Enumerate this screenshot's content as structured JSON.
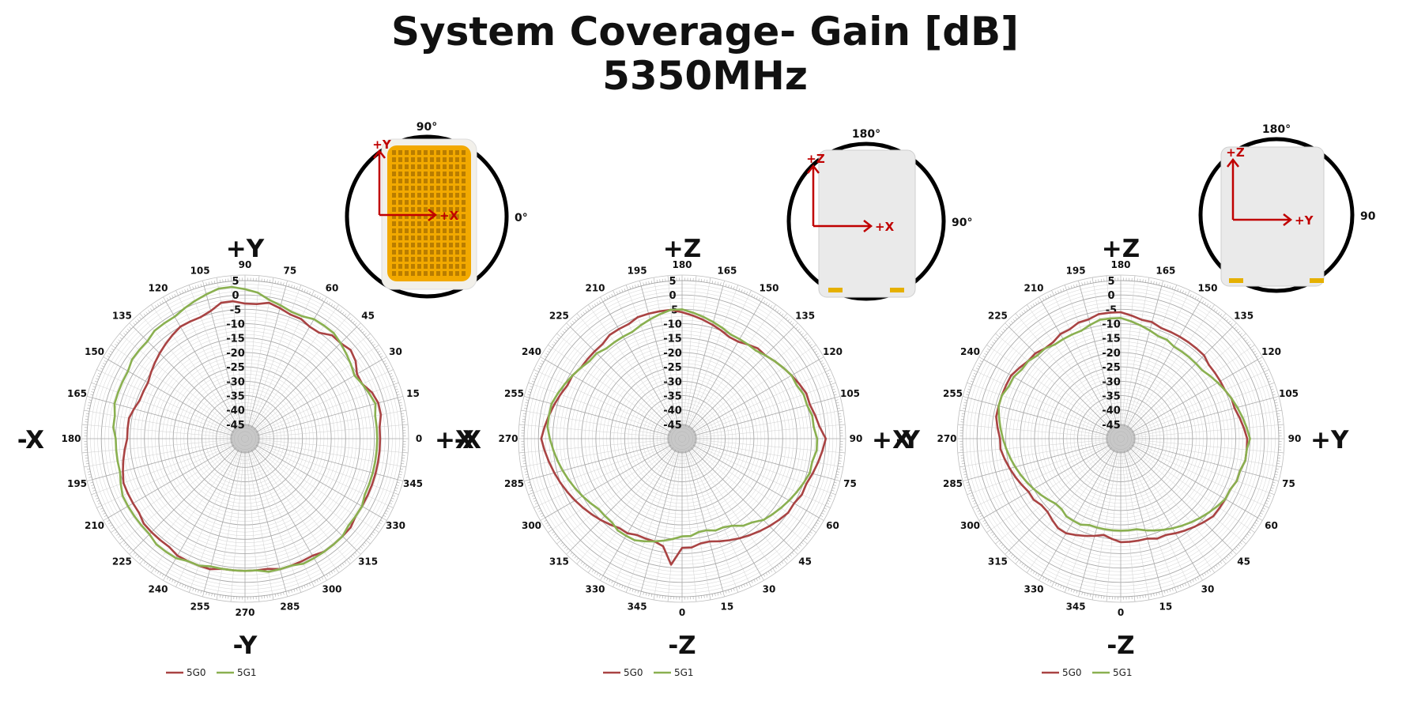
{
  "title": {
    "line1": "System Coverage- Gain [dB]",
    "line2": "5350MHz"
  },
  "colors": {
    "5G0": "#a94343",
    "5G1": "#8ab050",
    "grid": "#b9b9b9"
  },
  "chart_data": [
    {
      "type": "polar-line",
      "radial_ticks": [
        "5",
        "0",
        "-5",
        "-10",
        "-15",
        "-20",
        "-25",
        "-30",
        "-35",
        "-40",
        "-45"
      ],
      "rlim": [
        -50,
        5
      ],
      "angle_labels": [
        "0",
        "15",
        "30",
        "45",
        "60",
        "75",
        "90",
        "105",
        "120",
        "135",
        "150",
        "165",
        "180",
        "195",
        "210",
        "225",
        "240",
        "255",
        "270",
        "285",
        "300",
        "315",
        "330",
        "345"
      ],
      "axis_labels": {
        "top": "+Y",
        "bottom": "-Y",
        "left": "-X",
        "right": "+X"
      },
      "legend": [
        "5G0",
        "5G1"
      ],
      "inset": {
        "top": "90°",
        "right": "0°",
        "arrow_up": "+Y",
        "arrow_right": "+X"
      },
      "series": [
        {
          "name": "5G0",
          "values": [
            -3,
            -3,
            -2,
            -2,
            -3,
            -5,
            -5,
            -3,
            -2,
            -3,
            -3,
            -5,
            -5,
            -4,
            -4,
            -3,
            -2,
            -3,
            -3,
            -2,
            -2,
            -4,
            -5,
            -5,
            -5,
            -6,
            -7,
            -8,
            -9,
            -10,
            -11,
            -11,
            -11,
            -10,
            -9,
            -9,
            -9,
            -8,
            -7,
            -6,
            -5,
            -5,
            -5,
            -5,
            -4,
            -4,
            -4,
            -4,
            -3,
            -3,
            -3,
            -3,
            -4,
            -4,
            -4,
            -4,
            -4,
            -3,
            -3,
            -3,
            -3,
            -2,
            -2,
            -2,
            -2,
            -3,
            -3,
            -3,
            -3,
            -3,
            -3,
            -3
          ]
        },
        {
          "name": "5G1",
          "values": [
            -4,
            -4,
            -4,
            -3,
            -4,
            -5,
            -6,
            -5,
            -4,
            -3,
            -2,
            -2,
            -2,
            -3,
            -3,
            -2,
            -1,
            1,
            2,
            3,
            3,
            2,
            1,
            0,
            -1,
            -1,
            -1,
            -2,
            -2,
            -2,
            -3,
            -3,
            -3,
            -3,
            -4,
            -4,
            -5,
            -5,
            -5,
            -5,
            -4,
            -3,
            -3,
            -3,
            -3,
            -3,
            -2,
            -2,
            -2,
            -3,
            -3,
            -4,
            -4,
            -4,
            -4,
            -4,
            -3,
            -3,
            -3,
            -2,
            -2,
            -2,
            -2,
            -2,
            -3,
            -3,
            -3,
            -4,
            -4,
            -4,
            -4,
            -4
          ]
        }
      ]
    },
    {
      "type": "polar-line",
      "radial_ticks": [
        "5",
        "0",
        "-5",
        "-10",
        "-15",
        "-20",
        "-25",
        "-30",
        "-35",
        "-40",
        "-45"
      ],
      "rlim": [
        -50,
        5
      ],
      "angle_labels": [
        "0",
        "15",
        "30",
        "45",
        "60",
        "75",
        "90",
        "105",
        "120",
        "135",
        "150",
        "165",
        "180",
        "195",
        "210",
        "225",
        "240",
        "255",
        "270",
        "285",
        "300",
        "315",
        "330",
        "345"
      ],
      "axis_labels": {
        "top": "+Z",
        "bottom": "-Z",
        "left": "-X",
        "right": "+X"
      },
      "legend": [
        "5G0",
        "5G1"
      ],
      "inset": {
        "top": "180°",
        "right": "90°",
        "arrow_up": "+Z",
        "arrow_right": "+X"
      },
      "series": [
        {
          "name": "5G0",
          "values": [
            -12,
            -12,
            -13,
            -13,
            -12,
            -11,
            -10,
            -9,
            -8,
            -7,
            -6,
            -5,
            -5,
            -4,
            -4,
            -3,
            -2,
            -1,
            0,
            -2,
            -3,
            -4,
            -4,
            -5,
            -6,
            -7,
            -8,
            -9,
            -9,
            -10,
            -11,
            -11,
            -10,
            -9,
            -8,
            -7,
            -6,
            -5,
            -5,
            -5,
            -5,
            -6,
            -6,
            -6,
            -7,
            -7,
            -7,
            -7,
            -6,
            -6,
            -5,
            -4,
            -3,
            -2,
            -1,
            -2,
            -3,
            -4,
            -5,
            -6,
            -7,
            -8,
            -9,
            -10,
            -11,
            -12,
            -12,
            -13,
            -13,
            -13,
            -12,
            -6
          ]
        },
        {
          "name": "5G1",
          "values": [
            -16,
            -16,
            -17,
            -17,
            -16,
            -16,
            -15,
            -13,
            -12,
            -10,
            -9,
            -8,
            -7,
            -6,
            -5,
            -4,
            -4,
            -3,
            -3,
            -4,
            -4,
            -5,
            -5,
            -6,
            -6,
            -7,
            -8,
            -9,
            -10,
            -10,
            -10,
            -10,
            -9,
            -8,
            -7,
            -6,
            -5,
            -5,
            -6,
            -7,
            -8,
            -9,
            -9,
            -9,
            -9,
            -8,
            -8,
            -7,
            -6,
            -5,
            -4,
            -3,
            -3,
            -3,
            -4,
            -5,
            -6,
            -7,
            -8,
            -9,
            -10,
            -11,
            -12,
            -12,
            -12,
            -11,
            -11,
            -11,
            -12,
            -13,
            -14,
            -15
          ]
        }
      ]
    },
    {
      "type": "polar-line",
      "radial_ticks": [
        "5",
        "0",
        "-5",
        "-10",
        "-15",
        "-20",
        "-25",
        "-30",
        "-35",
        "-40",
        "-45"
      ],
      "rlim": [
        -50,
        5
      ],
      "angle_labels": [
        "0",
        "15",
        "30",
        "45",
        "60",
        "75",
        "90",
        "105",
        "120",
        "135",
        "150",
        "165",
        "180",
        "195",
        "210",
        "225",
        "240",
        "255",
        "270",
        "285",
        "300",
        "315",
        "330",
        "345"
      ],
      "axis_labels": {
        "top": "+Z",
        "bottom": "-Z",
        "left": "-Y",
        "right": "+Y"
      },
      "legend": [
        "5G0",
        "5G1"
      ],
      "inset": {
        "top": "180°",
        "right": "90",
        "arrow_up": "+Z",
        "arrow_right": "+Y"
      },
      "series": [
        {
          "name": "5G0",
          "values": [
            -14,
            -14,
            -14,
            -14,
            -13,
            -13,
            -12,
            -11,
            -10,
            -9,
            -8,
            -8,
            -8,
            -8,
            -7,
            -7,
            -6,
            -6,
            -6,
            -7,
            -8,
            -9,
            -9,
            -10,
            -10,
            -10,
            -10,
            -9,
            -9,
            -9,
            -9,
            -9,
            -9,
            -8,
            -8,
            -7,
            -6,
            -6,
            -6,
            -7,
            -7,
            -8,
            -8,
            -9,
            -9,
            -8,
            -8,
            -7,
            -6,
            -6,
            -6,
            -6,
            -6,
            -7,
            -8,
            -8,
            -9,
            -10,
            -11,
            -12,
            -13,
            -13,
            -14,
            -14,
            -13,
            -12,
            -12,
            -13,
            -14,
            -15,
            -16,
            -15
          ]
        },
        {
          "name": "5G1",
          "values": [
            -18,
            -18,
            -18,
            -17,
            -16,
            -15,
            -14,
            -13,
            -12,
            -11,
            -10,
            -9,
            -8,
            -8,
            -7,
            -7,
            -6,
            -6,
            -5,
            -6,
            -7,
            -8,
            -9,
            -10,
            -11,
            -12,
            -13,
            -13,
            -13,
            -13,
            -13,
            -12,
            -12,
            -11,
            -10,
            -9,
            -8,
            -8,
            -8,
            -9,
            -10,
            -10,
            -10,
            -10,
            -9,
            -9,
            -8,
            -8,
            -7,
            -7,
            -6,
            -6,
            -7,
            -8,
            -9,
            -10,
            -11,
            -12,
            -13,
            -14,
            -15,
            -16,
            -17,
            -18,
            -18,
            -17,
            -17,
            -17,
            -18,
            -18,
            -18,
            -18
          ]
        }
      ]
    }
  ]
}
